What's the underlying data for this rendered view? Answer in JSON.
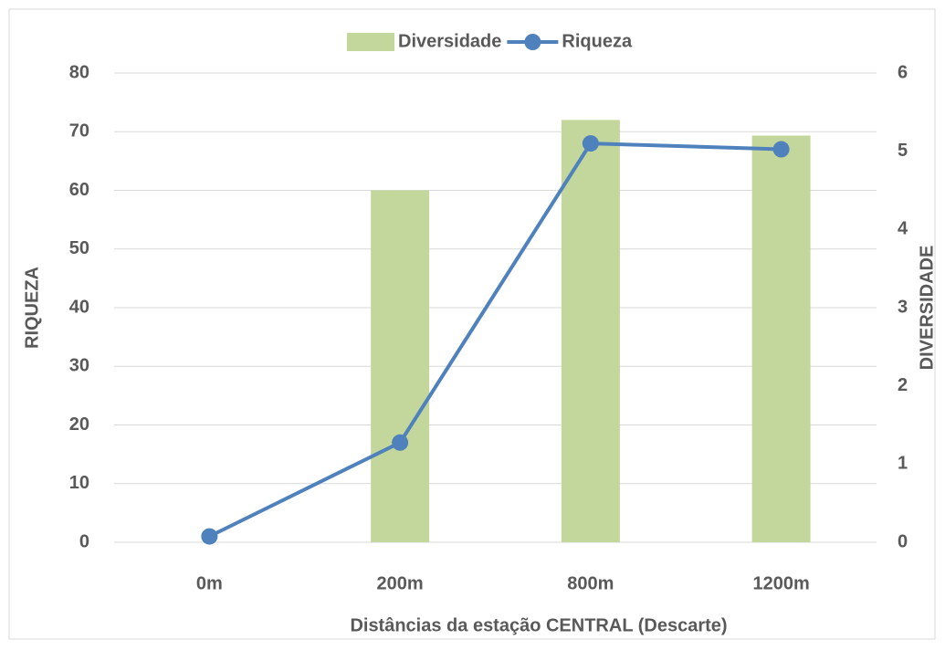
{
  "chart_data": {
    "type": "bar_line",
    "categories": [
      "0m",
      "200m",
      "800m",
      "1200m"
    ],
    "xlabel": "Distâncias da estação CENTRAL (Descarte)",
    "ylabel": "RIQUEZA",
    "y2label": "DIVERSIDADE",
    "ylim": [
      0,
      80
    ],
    "yticks": [
      0,
      10,
      20,
      30,
      40,
      50,
      60,
      70,
      80
    ],
    "y2lim": [
      0,
      6
    ],
    "y2ticks": [
      0,
      1,
      2,
      3,
      4,
      5,
      6
    ],
    "grid": true,
    "legend": "top",
    "series": [
      {
        "name": "Diversidade",
        "type": "bar",
        "axis": "y2",
        "color": "#c3d69b",
        "values": [
          0,
          4.5,
          5.4,
          5.2
        ]
      },
      {
        "name": "Riqueza",
        "type": "line",
        "axis": "y",
        "color": "#4f81bd",
        "values": [
          1,
          17,
          68,
          67
        ]
      }
    ]
  }
}
